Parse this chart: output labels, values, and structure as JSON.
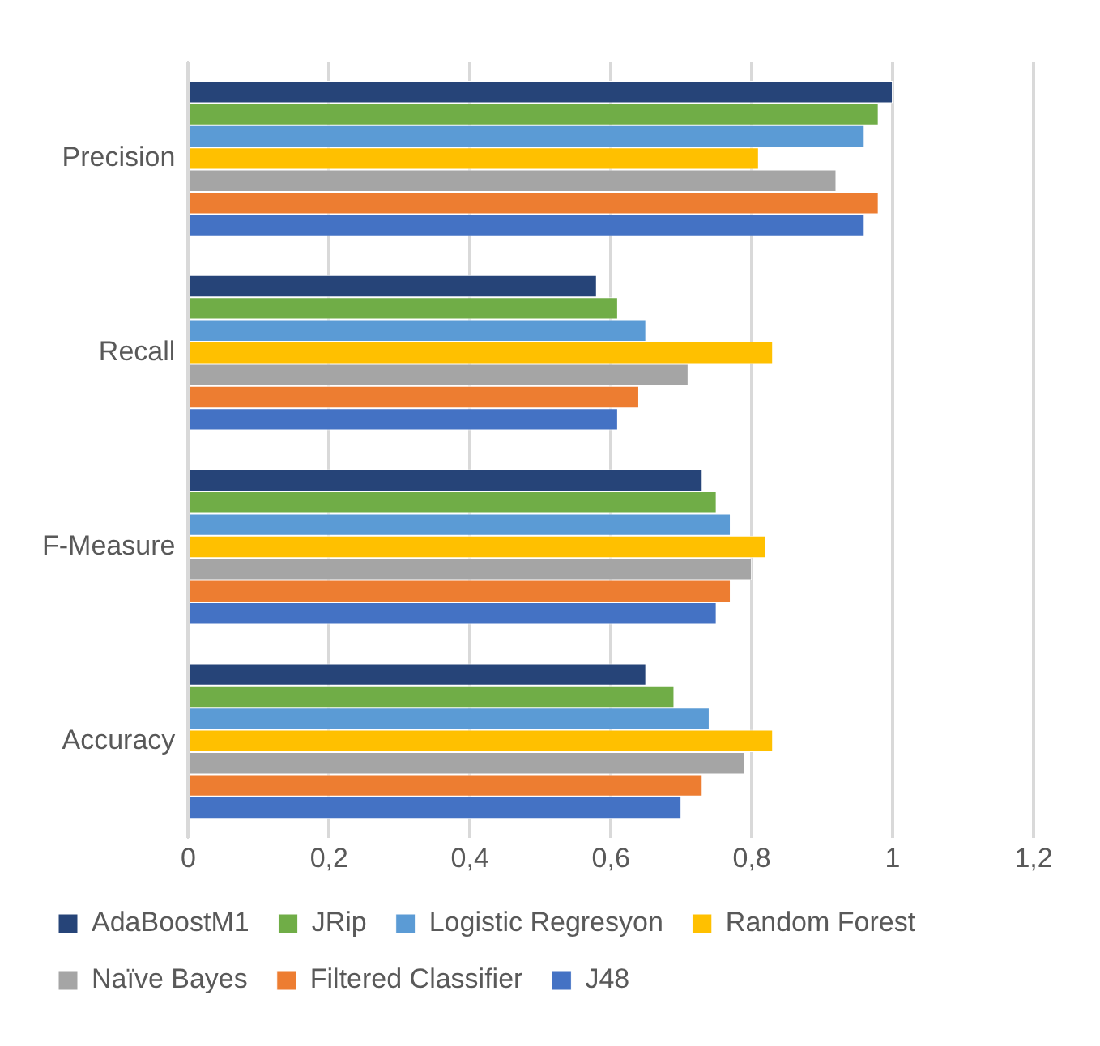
{
  "chart_data": {
    "type": "bar",
    "orientation": "horizontal",
    "categories": [
      "Precision",
      "Recall",
      "F-Measure",
      "Accuracy"
    ],
    "series": [
      {
        "name": "AdaBoostM1",
        "color": "#264478",
        "values": [
          1.0,
          0.58,
          0.73,
          0.65
        ]
      },
      {
        "name": "JRip",
        "color": "#70ad47",
        "values": [
          0.98,
          0.61,
          0.75,
          0.69
        ]
      },
      {
        "name": "Logistic Regresyon",
        "color": "#5b9bd5",
        "values": [
          0.96,
          0.65,
          0.77,
          0.74
        ]
      },
      {
        "name": "Random Forest",
        "color": "#ffc000",
        "values": [
          0.81,
          0.83,
          0.82,
          0.83
        ]
      },
      {
        "name": "Naïve Bayes",
        "color": "#a5a5a5",
        "values": [
          0.92,
          0.71,
          0.8,
          0.79
        ]
      },
      {
        "name": "Filtered Classifier",
        "color": "#ed7d31",
        "values": [
          0.98,
          0.64,
          0.77,
          0.73
        ]
      },
      {
        "name": "J48",
        "color": "#4472c4",
        "values": [
          0.96,
          0.61,
          0.75,
          0.7
        ]
      }
    ],
    "xlim": [
      0,
      1.2
    ],
    "xticks": [
      0,
      {
        "value": 0.2,
        "label": "0,2"
      },
      {
        "value": 0.4,
        "label": "0,4"
      },
      {
        "value": 0.6,
        "label": "0,6"
      },
      {
        "value": 0.8,
        "label": "0,8"
      },
      1,
      {
        "value": 1.2,
        "label": "1,2"
      }
    ],
    "grid": "x",
    "legend": "bottom"
  }
}
